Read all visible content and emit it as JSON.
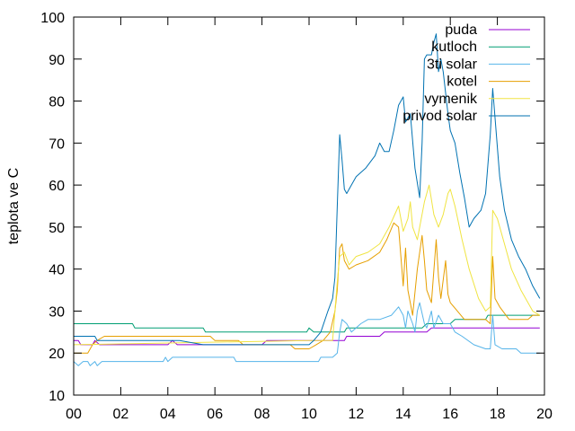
{
  "chart_data": {
    "type": "line",
    "title": "",
    "xlabel": "",
    "ylabel": "teplota ve C",
    "xlim": [
      0,
      20
    ],
    "ylim": [
      10,
      100
    ],
    "x_ticks": [
      0,
      2,
      4,
      6,
      8,
      10,
      12,
      14,
      16,
      18,
      20
    ],
    "x_tick_labels": [
      "00",
      "02",
      "04",
      "06",
      "08",
      "10",
      "12",
      "14",
      "16",
      "18",
      "20"
    ],
    "y_ticks": [
      10,
      20,
      30,
      40,
      50,
      60,
      70,
      80,
      90,
      100
    ],
    "y_tick_labels": [
      "10",
      "20",
      "30",
      "40",
      "50",
      "60",
      "70",
      "80",
      "90",
      "100"
    ],
    "grid": false,
    "legend_position": "top-right",
    "series": [
      {
        "name": "puda",
        "color": "#9400d3",
        "points": [
          [
            0,
            23
          ],
          [
            0.2,
            23
          ],
          [
            0.3,
            22
          ],
          [
            0.8,
            22
          ],
          [
            0.9,
            23
          ],
          [
            1.1,
            22
          ],
          [
            4,
            22
          ],
          [
            4.2,
            23
          ],
          [
            4.4,
            22
          ],
          [
            6,
            22
          ],
          [
            6.2,
            22
          ],
          [
            8,
            22
          ],
          [
            8.2,
            23
          ],
          [
            10,
            23
          ],
          [
            11.5,
            23
          ],
          [
            11.6,
            24
          ],
          [
            13,
            24
          ],
          [
            13.2,
            25
          ],
          [
            15,
            25
          ],
          [
            15.2,
            26
          ],
          [
            19.8,
            26
          ]
        ]
      },
      {
        "name": "kutloch",
        "color": "#009e73",
        "points": [
          [
            0,
            27
          ],
          [
            2.5,
            27
          ],
          [
            2.6,
            26
          ],
          [
            5.5,
            26
          ],
          [
            5.6,
            25
          ],
          [
            9.9,
            25
          ],
          [
            10,
            26
          ],
          [
            10.2,
            25
          ],
          [
            11.5,
            25
          ],
          [
            11.6,
            26
          ],
          [
            14.8,
            26
          ],
          [
            15,
            27
          ],
          [
            16,
            27
          ],
          [
            16.2,
            28
          ],
          [
            17.5,
            28
          ],
          [
            17.6,
            29
          ],
          [
            19.8,
            29
          ]
        ]
      },
      {
        "name": "3ti solar",
        "color": "#56b4e9",
        "points": [
          [
            0,
            18
          ],
          [
            0.2,
            17
          ],
          [
            0.4,
            18
          ],
          [
            0.6,
            18
          ],
          [
            0.7,
            17
          ],
          [
            0.9,
            18
          ],
          [
            1,
            17
          ],
          [
            1.2,
            18
          ],
          [
            3.8,
            18
          ],
          [
            3.9,
            19
          ],
          [
            4,
            18
          ],
          [
            4.2,
            19
          ],
          [
            6.8,
            19
          ],
          [
            6.9,
            18
          ],
          [
            10.4,
            18
          ],
          [
            10.5,
            19
          ],
          [
            11,
            19
          ],
          [
            11.2,
            20
          ],
          [
            11.3,
            25
          ],
          [
            11.4,
            28
          ],
          [
            11.6,
            27
          ],
          [
            11.8,
            25
          ],
          [
            12.2,
            27
          ],
          [
            12.5,
            28
          ],
          [
            13,
            28
          ],
          [
            13.5,
            29
          ],
          [
            13.8,
            31
          ],
          [
            14,
            29
          ],
          [
            14.1,
            26
          ],
          [
            14.2,
            30
          ],
          [
            14.4,
            27
          ],
          [
            14.5,
            25
          ],
          [
            14.6,
            30
          ],
          [
            14.7,
            32
          ],
          [
            14.9,
            27
          ],
          [
            15,
            26
          ],
          [
            15.2,
            30
          ],
          [
            15.3,
            26
          ],
          [
            15.5,
            29
          ],
          [
            15.7,
            27
          ],
          [
            16,
            27
          ],
          [
            16.2,
            25
          ],
          [
            16.5,
            24
          ],
          [
            17,
            22
          ],
          [
            17.5,
            21
          ],
          [
            17.7,
            21
          ],
          [
            17.8,
            29
          ],
          [
            17.9,
            22
          ],
          [
            18.2,
            21
          ],
          [
            18.8,
            21
          ],
          [
            19,
            20
          ],
          [
            19.3,
            20
          ],
          [
            19.5,
            20
          ],
          [
            19.8,
            20
          ]
        ]
      },
      {
        "name": "kotel",
        "color": "#e69f00",
        "points": [
          [
            0,
            20
          ],
          [
            0.6,
            20
          ],
          [
            0.8,
            22
          ],
          [
            1,
            23
          ],
          [
            1.3,
            24
          ],
          [
            1.8,
            24
          ],
          [
            5.8,
            24
          ],
          [
            6,
            23
          ],
          [
            7,
            23
          ],
          [
            7.2,
            22
          ],
          [
            9.2,
            22
          ],
          [
            9.4,
            21
          ],
          [
            10,
            21
          ],
          [
            10.3,
            22
          ],
          [
            10.6,
            23
          ],
          [
            10.9,
            25
          ],
          [
            11.1,
            30
          ],
          [
            11.2,
            35
          ],
          [
            11.3,
            45
          ],
          [
            11.4,
            46
          ],
          [
            11.5,
            42
          ],
          [
            11.7,
            40
          ],
          [
            12,
            41
          ],
          [
            12.5,
            42
          ],
          [
            13,
            44
          ],
          [
            13.3,
            47
          ],
          [
            13.6,
            51
          ],
          [
            13.8,
            50
          ],
          [
            14,
            36
          ],
          [
            14.1,
            45
          ],
          [
            14.2,
            35
          ],
          [
            14.4,
            29
          ],
          [
            14.6,
            40
          ],
          [
            14.8,
            48
          ],
          [
            14.9,
            42
          ],
          [
            15,
            35
          ],
          [
            15.2,
            32
          ],
          [
            15.4,
            47
          ],
          [
            15.5,
            38
          ],
          [
            15.6,
            33
          ],
          [
            15.8,
            42
          ],
          [
            15.9,
            34
          ],
          [
            16,
            32
          ],
          [
            16.3,
            30
          ],
          [
            16.6,
            28
          ],
          [
            17,
            28
          ],
          [
            17.5,
            28
          ],
          [
            17.7,
            27
          ],
          [
            17.8,
            43
          ],
          [
            17.9,
            33
          ],
          [
            18.1,
            31
          ],
          [
            18.5,
            28
          ],
          [
            19,
            28
          ],
          [
            19.3,
            28
          ],
          [
            19.5,
            29
          ],
          [
            19.8,
            29
          ]
        ]
      },
      {
        "name": "vymenik",
        "color": "#f0e442",
        "points": [
          [
            0,
            22
          ],
          [
            10,
            23
          ],
          [
            11,
            23
          ],
          [
            11.2,
            37
          ],
          [
            11.3,
            43
          ],
          [
            11.5,
            44
          ],
          [
            11.7,
            41
          ],
          [
            12,
            43
          ],
          [
            12.5,
            44
          ],
          [
            13,
            46
          ],
          [
            13.4,
            50
          ],
          [
            13.8,
            55
          ],
          [
            14,
            49
          ],
          [
            14.2,
            52
          ],
          [
            14.3,
            56
          ],
          [
            14.4,
            50
          ],
          [
            14.6,
            47
          ],
          [
            14.9,
            56
          ],
          [
            15.1,
            60
          ],
          [
            15.3,
            53
          ],
          [
            15.5,
            50
          ],
          [
            15.7,
            53
          ],
          [
            15.9,
            58
          ],
          [
            16,
            59
          ],
          [
            16.2,
            55
          ],
          [
            16.5,
            47
          ],
          [
            16.8,
            40
          ],
          [
            17.2,
            33
          ],
          [
            17.5,
            30
          ],
          [
            17.7,
            31
          ],
          [
            17.8,
            54
          ],
          [
            18,
            52
          ],
          [
            18.3,
            46
          ],
          [
            18.6,
            40
          ],
          [
            19,
            35
          ],
          [
            19.3,
            32
          ],
          [
            19.5,
            30
          ],
          [
            19.8,
            29
          ]
        ]
      },
      {
        "name": "privod solar",
        "color": "#0072b2",
        "points": [
          [
            0,
            24
          ],
          [
            0.9,
            24
          ],
          [
            1,
            23
          ],
          [
            2,
            23
          ],
          [
            3.5,
            23
          ],
          [
            4.5,
            23
          ],
          [
            5.5,
            22
          ],
          [
            7.5,
            22
          ],
          [
            8.5,
            22
          ],
          [
            9.5,
            22
          ],
          [
            10,
            22
          ],
          [
            10.2,
            23
          ],
          [
            10.5,
            25
          ],
          [
            10.8,
            30
          ],
          [
            11,
            33
          ],
          [
            11.1,
            38
          ],
          [
            11.2,
            55
          ],
          [
            11.3,
            72
          ],
          [
            11.4,
            66
          ],
          [
            11.5,
            59
          ],
          [
            11.6,
            58
          ],
          [
            11.7,
            59
          ],
          [
            12,
            62
          ],
          [
            12.4,
            64
          ],
          [
            12.8,
            67
          ],
          [
            13,
            70
          ],
          [
            13.2,
            68
          ],
          [
            13.4,
            68
          ],
          [
            13.6,
            73
          ],
          [
            13.8,
            79
          ],
          [
            14,
            81
          ],
          [
            14.1,
            75
          ],
          [
            14.3,
            77
          ],
          [
            14.5,
            64
          ],
          [
            14.7,
            57
          ],
          [
            14.8,
            70
          ],
          [
            14.9,
            90
          ],
          [
            15,
            91
          ],
          [
            15.2,
            91
          ],
          [
            15.3,
            94
          ],
          [
            15.4,
            96
          ],
          [
            15.5,
            87
          ],
          [
            15.6,
            90
          ],
          [
            15.7,
            87
          ],
          [
            15.9,
            77
          ],
          [
            16,
            73
          ],
          [
            16.2,
            70
          ],
          [
            16.4,
            63
          ],
          [
            16.6,
            57
          ],
          [
            16.8,
            50
          ],
          [
            17,
            52
          ],
          [
            17.3,
            54
          ],
          [
            17.5,
            58
          ],
          [
            17.7,
            72
          ],
          [
            17.8,
            83
          ],
          [
            17.9,
            76
          ],
          [
            18.1,
            62
          ],
          [
            18.3,
            54
          ],
          [
            18.6,
            47
          ],
          [
            18.9,
            43
          ],
          [
            19.2,
            40
          ],
          [
            19.5,
            36
          ],
          [
            19.8,
            33
          ]
        ]
      }
    ]
  }
}
